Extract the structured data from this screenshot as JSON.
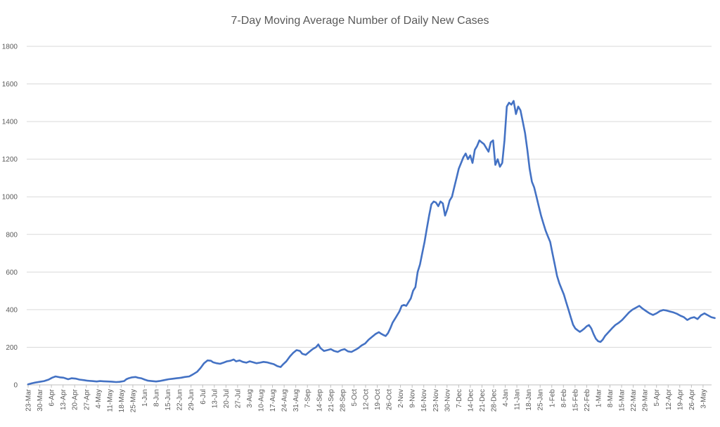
{
  "chart_data": {
    "type": "line",
    "title": "7-Day Moving Average Number of Daily New Cases",
    "xlabel": "",
    "ylabel": "",
    "ylim": [
      0,
      1800
    ],
    "y_ticks": [
      "0",
      "200",
      "400",
      "600",
      "800",
      "1000",
      "1200",
      "1400",
      "1600",
      "1800"
    ],
    "grid": true,
    "legend": "none",
    "x_tick_labels": [
      "23-Mar",
      "30-Mar",
      "6-Apr",
      "13-Apr",
      "20-Apr",
      "27-Apr",
      "4-May",
      "11-May",
      "18-May",
      "25-May",
      "1-Jun",
      "8-Jun",
      "15-Jun",
      "22-Jun",
      "29-Jun",
      "6-Jul",
      "13-Jul",
      "20-Jul",
      "27-Jul",
      "3-Aug",
      "10-Aug",
      "17-Aug",
      "24-Aug",
      "31-Aug",
      "7-Sep",
      "14-Sep",
      "21-Sep",
      "28-Sep",
      "5-Oct",
      "12-Oct",
      "19-Oct",
      "26-Oct",
      "2-Nov",
      "9-Nov",
      "16-Nov",
      "23-Nov",
      "30-Nov",
      "7-Dec",
      "14-Dec",
      "21-Dec",
      "28-Dec",
      "4-Jan",
      "11-Jan",
      "18-Jan",
      "25-Jan",
      "1-Feb",
      "8-Feb",
      "15-Feb",
      "22-Feb",
      "1-Mar",
      "8-Mar",
      "15-Mar",
      "22-Mar",
      "29-Mar",
      "5-Apr",
      "12-Apr",
      "19-Apr",
      "26-Apr",
      "3-May"
    ],
    "x_day_offset_last": 413,
    "series": [
      {
        "color": "#4472c4",
        "points": [
          [
            0,
            3
          ],
          [
            3,
            8
          ],
          [
            6,
            12
          ],
          [
            10,
            16
          ],
          [
            14,
            20
          ],
          [
            18,
            28
          ],
          [
            21,
            38
          ],
          [
            24,
            45
          ],
          [
            28,
            40
          ],
          [
            31,
            38
          ],
          [
            35,
            30
          ],
          [
            38,
            35
          ],
          [
            42,
            33
          ],
          [
            45,
            28
          ],
          [
            49,
            25
          ],
          [
            52,
            22
          ],
          [
            56,
            20
          ],
          [
            60,
            18
          ],
          [
            63,
            20
          ],
          [
            66,
            19
          ],
          [
            70,
            18
          ],
          [
            73,
            17
          ],
          [
            77,
            15
          ],
          [
            80,
            16
          ],
          [
            84,
            20
          ],
          [
            86,
            30
          ],
          [
            88,
            35
          ],
          [
            91,
            40
          ],
          [
            94,
            42
          ],
          [
            96,
            38
          ],
          [
            99,
            35
          ],
          [
            102,
            28
          ],
          [
            105,
            22
          ],
          [
            108,
            20
          ],
          [
            112,
            18
          ],
          [
            115,
            20
          ],
          [
            119,
            25
          ],
          [
            123,
            30
          ],
          [
            126,
            32
          ],
          [
            130,
            35
          ],
          [
            134,
            38
          ],
          [
            137,
            42
          ],
          [
            141,
            45
          ],
          [
            144,
            55
          ],
          [
            148,
            70
          ],
          [
            151,
            90
          ],
          [
            154,
            115
          ],
          [
            157,
            130
          ],
          [
            160,
            128
          ],
          [
            162,
            120
          ],
          [
            165,
            115
          ],
          [
            168,
            112
          ],
          [
            171,
            118
          ],
          [
            174,
            125
          ],
          [
            177,
            128
          ],
          [
            180,
            135
          ],
          [
            182,
            125
          ],
          [
            185,
            130
          ],
          [
            188,
            122
          ],
          [
            191,
            118
          ],
          [
            194,
            125
          ],
          [
            197,
            120
          ],
          [
            200,
            115
          ],
          [
            203,
            118
          ],
          [
            206,
            122
          ],
          [
            209,
            120
          ],
          [
            212,
            115
          ],
          [
            215,
            110
          ],
          [
            218,
            100
          ],
          [
            221,
            95
          ],
          [
            223,
            108
          ],
          [
            226,
            125
          ],
          [
            229,
            150
          ],
          [
            232,
            170
          ],
          [
            235,
            185
          ],
          [
            238,
            180
          ],
          [
            240,
            165
          ],
          [
            243,
            160
          ],
          [
            246,
            175
          ],
          [
            249,
            190
          ],
          [
            252,
            200
          ],
          [
            254,
            215
          ],
          [
            256,
            195
          ],
          [
            259,
            180
          ],
          [
            262,
            185
          ],
          [
            265,
            190
          ],
          [
            268,
            180
          ],
          [
            271,
            175
          ],
          [
            274,
            185
          ],
          [
            277,
            190
          ],
          [
            280,
            178
          ],
          [
            283,
            175
          ],
          [
            286,
            185
          ],
          [
            289,
            195
          ],
          [
            292,
            210
          ],
          [
            295,
            220
          ],
          [
            298,
            240
          ],
          [
            301,
            255
          ],
          [
            304,
            270
          ],
          [
            307,
            280
          ],
          [
            309,
            272
          ],
          [
            311,
            265
          ],
          [
            313,
            260
          ],
          [
            315,
            275
          ],
          [
            317,
            300
          ],
          [
            319,
            330
          ],
          [
            322,
            360
          ],
          [
            325,
            390
          ],
          [
            327,
            420
          ],
          [
            329,
            425
          ],
          [
            331,
            420
          ],
          [
            333,
            440
          ],
          [
            335,
            460
          ],
          [
            337,
            500
          ],
          [
            339,
            520
          ],
          [
            341,
            600
          ],
          [
            343,
            640
          ],
          [
            345,
            700
          ],
          [
            347,
            760
          ],
          [
            349,
            830
          ],
          [
            351,
            900
          ],
          [
            353,
            960
          ],
          [
            355,
            975
          ],
          [
            357,
            970
          ],
          [
            359,
            950
          ],
          [
            361,
            975
          ],
          [
            363,
            965
          ],
          [
            365,
            900
          ],
          [
            367,
            935
          ],
          [
            369,
            980
          ],
          [
            371,
            1000
          ],
          [
            373,
            1050
          ],
          [
            375,
            1100
          ],
          [
            377,
            1150
          ],
          [
            379,
            1180
          ],
          [
            381,
            1210
          ],
          [
            383,
            1230
          ],
          [
            385,
            1200
          ],
          [
            387,
            1220
          ],
          [
            389,
            1180
          ],
          [
            391,
            1250
          ],
          [
            393,
            1270
          ],
          [
            395,
            1300
          ],
          [
            397,
            1290
          ],
          [
            399,
            1280
          ],
          [
            401,
            1260
          ],
          [
            403,
            1240
          ],
          [
            405,
            1290
          ],
          [
            407,
            1300
          ],
          [
            409,
            1170
          ],
          [
            411,
            1200
          ],
          [
            413,
            1160
          ],
          [
            415,
            1180
          ],
          [
            417,
            1300
          ],
          [
            419,
            1480
          ],
          [
            421,
            1500
          ],
          [
            423,
            1490
          ],
          [
            425,
            1510
          ],
          [
            427,
            1440
          ],
          [
            429,
            1480
          ],
          [
            431,
            1460
          ],
          [
            433,
            1400
          ],
          [
            435,
            1340
          ],
          [
            437,
            1250
          ],
          [
            439,
            1150
          ],
          [
            441,
            1080
          ],
          [
            443,
            1050
          ],
          [
            445,
            1000
          ],
          [
            447,
            950
          ],
          [
            449,
            900
          ],
          [
            451,
            860
          ],
          [
            453,
            820
          ],
          [
            455,
            790
          ],
          [
            457,
            760
          ],
          [
            459,
            700
          ],
          [
            461,
            640
          ],
          [
            463,
            580
          ],
          [
            465,
            540
          ],
          [
            467,
            510
          ],
          [
            469,
            480
          ],
          [
            471,
            440
          ],
          [
            473,
            400
          ],
          [
            475,
            360
          ],
          [
            477,
            320
          ],
          [
            479,
            300
          ],
          [
            481,
            290
          ],
          [
            483,
            282
          ],
          [
            485,
            290
          ],
          [
            487,
            300
          ],
          [
            489,
            312
          ],
          [
            491,
            318
          ],
          [
            493,
            300
          ],
          [
            495,
            270
          ],
          [
            497,
            245
          ],
          [
            499,
            232
          ],
          [
            501,
            228
          ],
          [
            503,
            240
          ],
          [
            505,
            260
          ],
          [
            508,
            280
          ],
          [
            511,
            300
          ],
          [
            514,
            318
          ],
          [
            517,
            330
          ],
          [
            520,
            345
          ],
          [
            523,
            365
          ],
          [
            526,
            385
          ],
          [
            529,
            400
          ],
          [
            532,
            410
          ],
          [
            535,
            420
          ],
          [
            538,
            405
          ],
          [
            541,
            392
          ],
          [
            544,
            380
          ],
          [
            547,
            372
          ],
          [
            550,
            380
          ],
          [
            553,
            392
          ],
          [
            556,
            398
          ],
          [
            559,
            395
          ],
          [
            562,
            390
          ],
          [
            565,
            385
          ],
          [
            568,
            378
          ],
          [
            571,
            368
          ],
          [
            574,
            360
          ],
          [
            577,
            345
          ],
          [
            580,
            355
          ],
          [
            583,
            360
          ],
          [
            586,
            350
          ],
          [
            589,
            370
          ],
          [
            592,
            380
          ],
          [
            595,
            370
          ],
          [
            598,
            360
          ],
          [
            601,
            355
          ]
        ]
      }
    ]
  }
}
